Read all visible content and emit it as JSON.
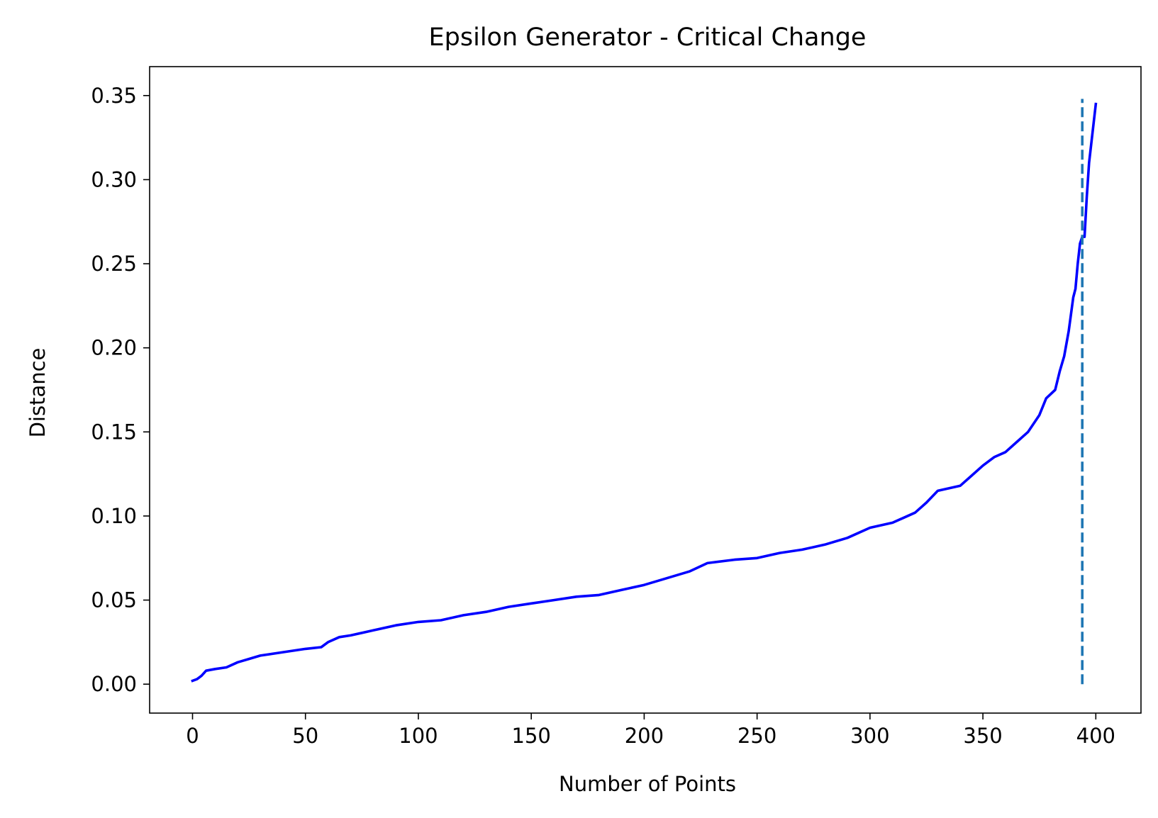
{
  "chart_data": {
    "type": "line",
    "title": "Epsilon Generator - Critical Change",
    "xlabel": "Number of Points",
    "ylabel": "Distance",
    "xlim": [
      -19,
      420
    ],
    "ylim": [
      -0.0172,
      0.3672
    ],
    "x_ticks": [
      0,
      50,
      100,
      150,
      200,
      250,
      300,
      350,
      400
    ],
    "x_tick_labels": [
      "0",
      "50",
      "100",
      "150",
      "200",
      "250",
      "300",
      "350",
      "400"
    ],
    "y_ticks": [
      0.0,
      0.05,
      0.1,
      0.15,
      0.2,
      0.25,
      0.3,
      0.35
    ],
    "y_tick_labels": [
      "0.00",
      "0.05",
      "0.10",
      "0.15",
      "0.20",
      "0.25",
      "0.30",
      "0.35"
    ],
    "grid": false,
    "legend": "none",
    "series": [
      {
        "color": "#0000ff",
        "points": [
          [
            0,
            0.002
          ],
          [
            2,
            0.003
          ],
          [
            4,
            0.005
          ],
          [
            6,
            0.008
          ],
          [
            10,
            0.009
          ],
          [
            15,
            0.01
          ],
          [
            20,
            0.013
          ],
          [
            25,
            0.015
          ],
          [
            30,
            0.017
          ],
          [
            40,
            0.019
          ],
          [
            50,
            0.021
          ],
          [
            57,
            0.022
          ],
          [
            60,
            0.025
          ],
          [
            65,
            0.028
          ],
          [
            70,
            0.029
          ],
          [
            80,
            0.032
          ],
          [
            90,
            0.035
          ],
          [
            100,
            0.037
          ],
          [
            110,
            0.038
          ],
          [
            120,
            0.041
          ],
          [
            130,
            0.043
          ],
          [
            140,
            0.046
          ],
          [
            150,
            0.048
          ],
          [
            160,
            0.05
          ],
          [
            170,
            0.052
          ],
          [
            180,
            0.053
          ],
          [
            190,
            0.056
          ],
          [
            200,
            0.059
          ],
          [
            210,
            0.063
          ],
          [
            220,
            0.067
          ],
          [
            228,
            0.072
          ],
          [
            240,
            0.074
          ],
          [
            250,
            0.075
          ],
          [
            260,
            0.078
          ],
          [
            270,
            0.08
          ],
          [
            280,
            0.083
          ],
          [
            290,
            0.087
          ],
          [
            300,
            0.093
          ],
          [
            310,
            0.096
          ],
          [
            320,
            0.102
          ],
          [
            325,
            0.108
          ],
          [
            330,
            0.115
          ],
          [
            340,
            0.118
          ],
          [
            345,
            0.124
          ],
          [
            350,
            0.13
          ],
          [
            355,
            0.135
          ],
          [
            360,
            0.138
          ],
          [
            365,
            0.144
          ],
          [
            370,
            0.15
          ],
          [
            375,
            0.16
          ],
          [
            378,
            0.17
          ],
          [
            382,
            0.175
          ],
          [
            384,
            0.186
          ],
          [
            386,
            0.195
          ],
          [
            388,
            0.21
          ],
          [
            390,
            0.23
          ],
          [
            391,
            0.235
          ],
          [
            392,
            0.25
          ],
          [
            393,
            0.262
          ],
          [
            394,
            0.266
          ],
          [
            395,
            0.266
          ],
          [
            396,
            0.29
          ],
          [
            397,
            0.31
          ],
          [
            400,
            0.345
          ]
        ]
      }
    ],
    "vline": {
      "x": 394,
      "y_from": 0.0,
      "y_to": 0.348,
      "style": "dashed",
      "color": "#1f77b4"
    }
  }
}
